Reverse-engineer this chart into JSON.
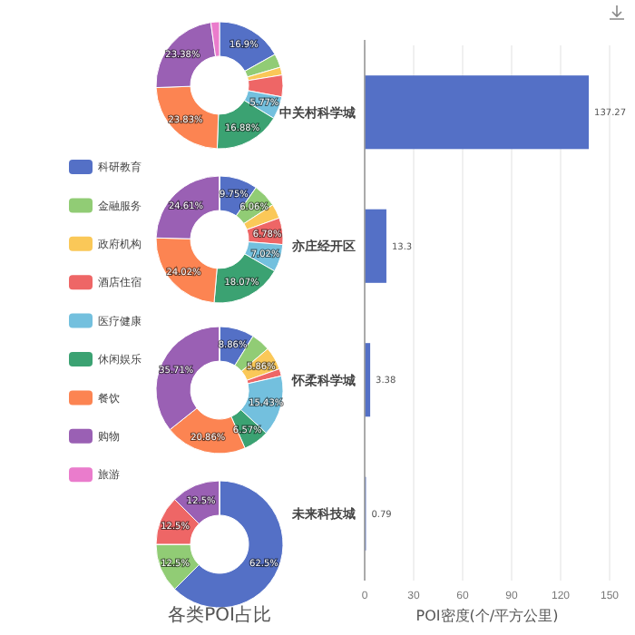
{
  "chart_data": [
    {
      "type": "donut",
      "categories": [
        "科研教育",
        "金融服务",
        "政府机构",
        "酒店住宿",
        "医疗健康",
        "休闲娱乐",
        "餐饮",
        "购物",
        "旅游"
      ],
      "values": [
        16.9,
        3.5,
        2,
        5.54,
        5.77,
        16.88,
        23.83,
        23.38,
        2.2
      ],
      "value_labels": [
        "16.9%",
        null,
        null,
        null,
        "5.77%",
        "16.88%",
        "23.83%",
        "23.38%",
        null
      ],
      "colors": [
        "#5470c6",
        "#91cc75",
        "#fac858",
        "#ee6666",
        "#73c0de",
        "#3ba272",
        "#fc8452",
        "#9a60b4",
        "#ea7ccc"
      ],
      "legend": "left"
    },
    {
      "type": "donut",
      "values": [
        9.75,
        6.06,
        3.69,
        6.78,
        7.02,
        18.07,
        24.02,
        24.61,
        0
      ],
      "value_labels": [
        "9.75%",
        "6.06%",
        null,
        "6.78%",
        "7.02%",
        "18.07%",
        "24.02%",
        "24.61%",
        null
      ],
      "colors": [
        "#5470c6",
        "#91cc75",
        "#fac858",
        "#ee6666",
        "#73c0de",
        "#3ba272",
        "#fc8452",
        "#9a60b4",
        "#ea7ccc"
      ]
    },
    {
      "type": "donut",
      "values": [
        8.86,
        4.86,
        5.86,
        1.85,
        15.43,
        6.57,
        20.86,
        35.71,
        0
      ],
      "value_labels": [
        "8.86%",
        null,
        "5.86%",
        null,
        "15.43%",
        "6.57%",
        "20.86%",
        "35.71%",
        null
      ],
      "colors": [
        "#5470c6",
        "#91cc75",
        "#fac858",
        "#ee6666",
        "#73c0de",
        "#3ba272",
        "#fc8452",
        "#9a60b4",
        "#ea7ccc"
      ]
    },
    {
      "type": "donut",
      "title": "各类POI占比",
      "values": [
        62.5,
        12.5,
        0,
        12.5,
        0,
        0,
        0,
        12.5,
        0
      ],
      "value_labels": [
        "62.5%",
        "12.5%",
        null,
        "12.5%",
        null,
        null,
        null,
        "12.5%",
        null
      ],
      "colors": [
        "#5470c6",
        "#91cc75",
        "#fac858",
        "#ee6666",
        "#73c0de",
        "#3ba272",
        "#fc8452",
        "#9a60b4",
        "#ea7ccc"
      ]
    },
    {
      "type": "bar",
      "orientation": "horizontal",
      "categories": [
        "中关村科学城",
        "亦庄经开区",
        "怀柔科学城",
        "未来科技城"
      ],
      "values": [
        137.27,
        13.3,
        3.38,
        0.79
      ],
      "color": "#5470c6",
      "xlabel": "POI密度(个/平方公里)",
      "xlim": [
        0,
        150
      ],
      "xticks": [
        0,
        30,
        60,
        90,
        120,
        150
      ],
      "grid": "x",
      "data_labels": true
    }
  ]
}
